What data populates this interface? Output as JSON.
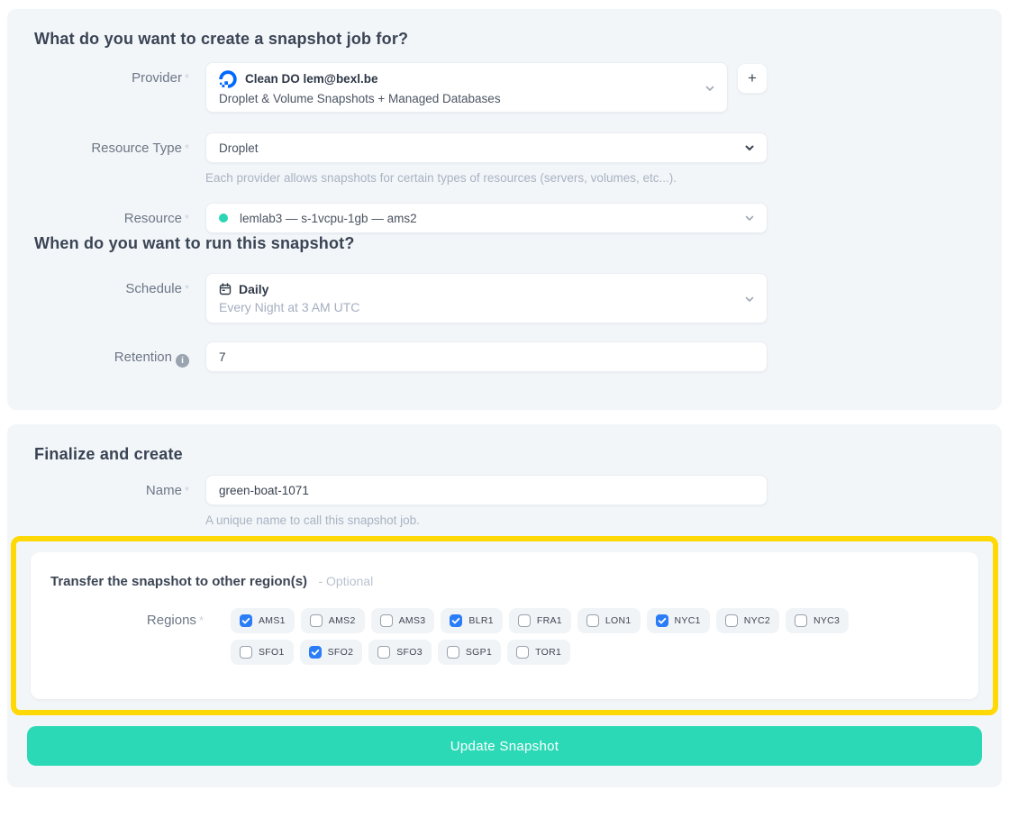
{
  "colors": {
    "accent": "#2cd9b7",
    "checkbox_blue": "#2b7df7",
    "highlight_yellow": "#ffd906",
    "brand_blue": "#0069ff",
    "resource_dot": "#2cd5b4"
  },
  "create_section": {
    "title": "What do you want to create a snapshot job for?",
    "provider": {
      "label": "Provider",
      "required_mark": "*",
      "selected_name": "Clean DO lem@bexl.be",
      "selected_description": "Droplet & Volume Snapshots + Managed Databases",
      "add_button_label": "+"
    },
    "resource_type": {
      "label": "Resource Type",
      "required_mark": "*",
      "value": "Droplet",
      "helper": "Each provider allows snapshots for certain types of resources (servers, volumes, etc...)."
    },
    "resource": {
      "label": "Resource",
      "required_mark": "*",
      "value": "lemlab3 — s-1vcpu-1gb — ams2"
    }
  },
  "schedule_section": {
    "title": "When do you want to run this snapshot?",
    "schedule": {
      "label": "Schedule",
      "required_mark": "*",
      "value": "Daily",
      "description": "Every Night at 3 AM UTC"
    },
    "retention": {
      "label": "Retention",
      "value": "7"
    }
  },
  "finalize_section": {
    "title": "Finalize and create",
    "name": {
      "label": "Name",
      "required_mark": "*",
      "value": "green-boat-1071",
      "helper": "A unique name to call this snapshot job."
    },
    "transfer": {
      "title": "Transfer the snapshot to other region(s)",
      "optional_label": "- Optional",
      "regions_label": "Regions",
      "required_mark": "*",
      "region_rows": [
        [
          {
            "code": "AMS1",
            "checked": true
          },
          {
            "code": "AMS2",
            "checked": false
          },
          {
            "code": "AMS3",
            "checked": false
          },
          {
            "code": "BLR1",
            "checked": true
          },
          {
            "code": "FRA1",
            "checked": false
          },
          {
            "code": "LON1",
            "checked": false
          },
          {
            "code": "NYC1",
            "checked": true
          },
          {
            "code": "NYC2",
            "checked": false
          },
          {
            "code": "NYC3",
            "checked": false
          }
        ],
        [
          {
            "code": "SFO1",
            "checked": false
          },
          {
            "code": "SFO2",
            "checked": true
          },
          {
            "code": "SFO3",
            "checked": false
          },
          {
            "code": "SGP1",
            "checked": false
          },
          {
            "code": "TOR1",
            "checked": false
          }
        ]
      ]
    },
    "submit_button_label": "Update Snapshot"
  }
}
